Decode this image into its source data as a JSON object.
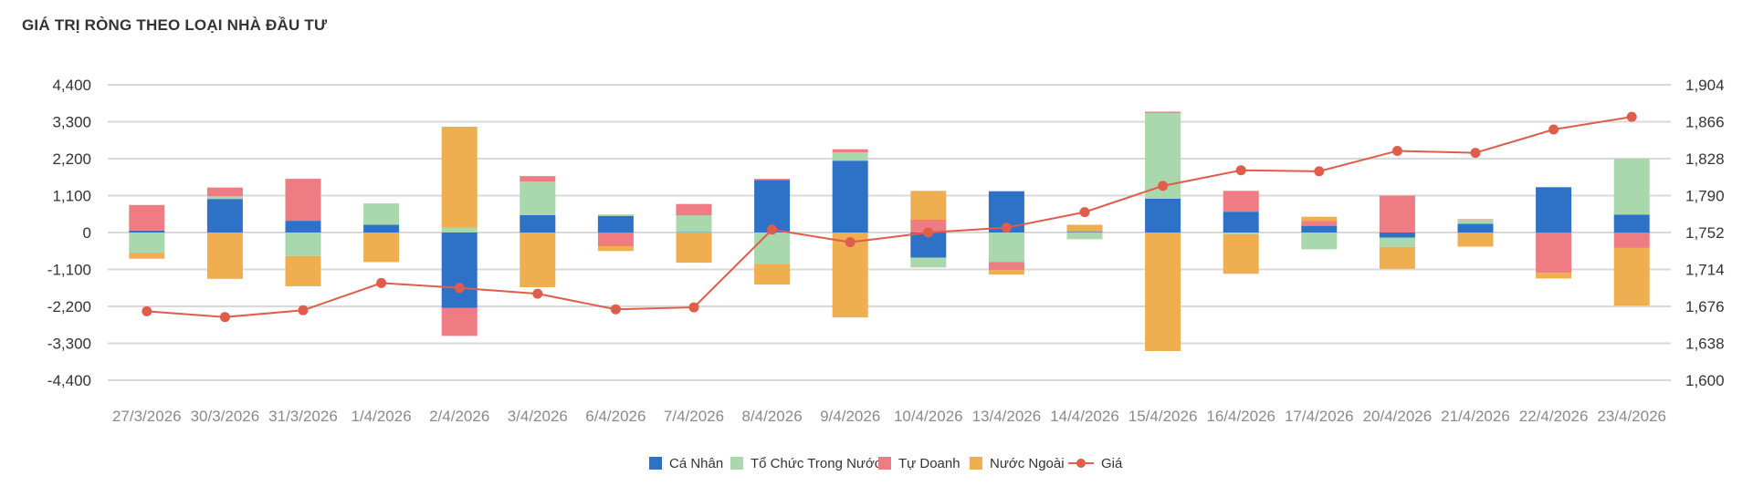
{
  "chart_data": {
    "type": "bar",
    "title": "GIÁ TRỊ RÒNG THEO LOẠI NHÀ ĐẦU TƯ",
    "categories": [
      "27/3/2026",
      "30/3/2026",
      "31/3/2026",
      "1/4/2026",
      "2/4/2026",
      "3/4/2026",
      "6/4/2026",
      "7/4/2026",
      "8/4/2026",
      "9/4/2026",
      "10/4/2026",
      "13/4/2026",
      "14/4/2026",
      "15/4/2026",
      "16/4/2026",
      "17/4/2026",
      "20/4/2026",
      "21/4/2026",
      "22/4/2026",
      "23/4/2026"
    ],
    "stacked": true,
    "series": [
      {
        "name": "Cá Nhân",
        "color": "#2e72c8",
        "values": [
          60,
          1000,
          350,
          230,
          -2250,
          520,
          490,
          10,
          1560,
          2140,
          -750,
          1230,
          20,
          1010,
          620,
          200,
          -150,
          260,
          1350,
          530
        ]
      },
      {
        "name": "Tổ Chức Trong Nước",
        "color": "#a8d8ab",
        "values": [
          -600,
          80,
          -700,
          620,
          150,
          1000,
          50,
          500,
          -930,
          250,
          -290,
          -880,
          -200,
          2550,
          -50,
          -500,
          -280,
          130,
          0,
          1670
        ]
      },
      {
        "name": "Tự Doanh",
        "color": "#ef7b83",
        "values": [
          760,
          260,
          1250,
          10,
          -830,
          160,
          -410,
          340,
          40,
          90,
          380,
          -240,
          0,
          40,
          620,
          140,
          1100,
          10,
          -1200,
          -460
        ]
      },
      {
        "name": "Nước Ngoài",
        "color": "#efae50",
        "values": [
          -180,
          -1380,
          -900,
          -880,
          3000,
          -1630,
          -140,
          -900,
          -620,
          -2530,
          860,
          -130,
          210,
          -3530,
          -1180,
          130,
          -650,
          -420,
          -170,
          -1720
        ]
      }
    ],
    "line": {
      "name": "Giá",
      "color": "#e05c4b",
      "values": [
        1671,
        1665,
        1672,
        1700,
        1695,
        1689,
        1673,
        1675,
        1755,
        1742,
        1752,
        1757,
        1773,
        1800,
        1816,
        1815,
        1836,
        1834,
        1858,
        1871
      ]
    },
    "y_left": {
      "min": -4400,
      "max": 4400,
      "step": 1100,
      "tick_labels": [
        "4,400",
        "3,300",
        "2,200",
        "1,100",
        "0",
        "-1,100",
        "-2,200",
        "-3,300",
        "-4,400"
      ]
    },
    "y_right": {
      "min": 1600,
      "max": 1904,
      "tick_labels": [
        "1,904",
        "1,866",
        "1,828",
        "1,790",
        "1,752",
        "1,714",
        "1,676",
        "1,638",
        "1,600"
      ]
    },
    "grid": true,
    "legend_position": "bottom-center"
  }
}
